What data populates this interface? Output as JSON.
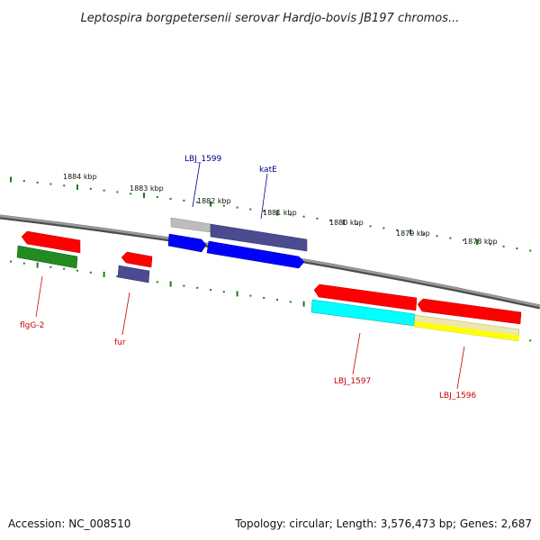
{
  "header": {
    "title": "Leptospira borgpetersenii serovar Hardjo-bovis JB197 chromos..."
  },
  "ruler": {
    "labels": [
      "1884 kbp",
      "1883 kbp",
      "1882 kbp",
      "1881 kbp",
      "1880 kbp",
      "1879 kbp",
      "1878 kbp"
    ]
  },
  "genes": {
    "upper": [
      {
        "name": "LBJ_1599",
        "color": "#00008b"
      },
      {
        "name": "katE",
        "color": "#00008b"
      }
    ],
    "lower": [
      {
        "name": "flgG-2",
        "color": "#cc0000"
      },
      {
        "name": "fur",
        "color": "#cc0000"
      },
      {
        "name": "LBJ_1597",
        "color": "#cc0000"
      },
      {
        "name": "LBJ_1596",
        "color": "#cc0000"
      }
    ]
  },
  "colors": {
    "backbone": "#7a7a7a",
    "ticks": "#1a7a1a",
    "feature_red": "#ff0000",
    "feature_blue": "#0000ff",
    "feature_purple": "#4b4b8f",
    "feature_green": "#228b22",
    "feature_gray": "#a9a9a9",
    "feature_cyan": "#00ffff",
    "feature_yellow": "#ffff00",
    "feature_khaki": "#eee8aa"
  },
  "footer": {
    "accession": "Accession: NC_008510",
    "summary": "Topology: circular; Length: 3,576,473 bp; Genes: 2,687"
  }
}
